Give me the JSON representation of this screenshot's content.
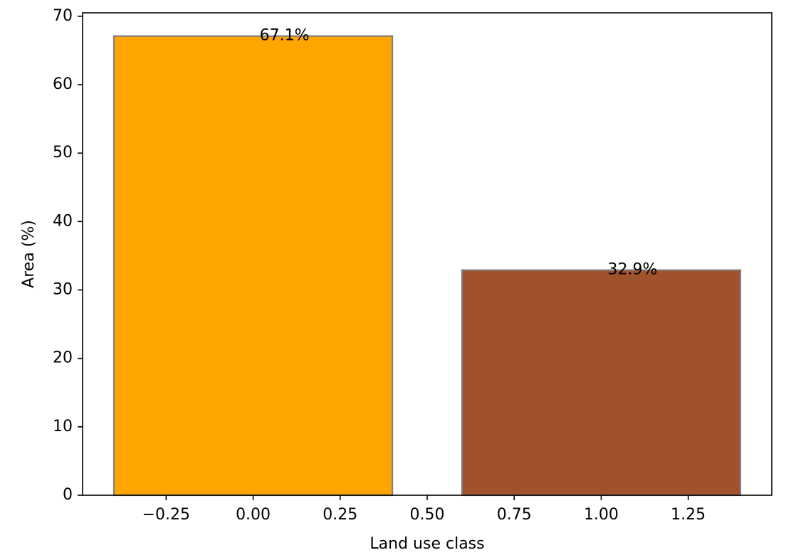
{
  "chart_data": {
    "type": "bar",
    "title": "",
    "xlabel": "Land use class",
    "ylabel": "Area (%)",
    "xlim": [
      -0.49,
      1.49
    ],
    "ylim": [
      0,
      70.5
    ],
    "x_ticks": [
      -0.25,
      0.0,
      0.25,
      0.5,
      0.75,
      1.0,
      1.25
    ],
    "x_tick_labels": [
      "−0.25",
      "0.00",
      "0.25",
      "0.50",
      "0.75",
      "1.00",
      "1.25"
    ],
    "y_ticks": [
      0,
      10,
      20,
      30,
      40,
      50,
      60,
      70
    ],
    "y_tick_labels": [
      "0",
      "10",
      "20",
      "30",
      "40",
      "50",
      "60",
      "70"
    ],
    "bar_width": 0.8,
    "grid": false,
    "bars": [
      {
        "x": 0,
        "value": 67.1,
        "label": "67.1%",
        "color": "#FFA500",
        "edge_color": "#808080"
      },
      {
        "x": 1,
        "value": 32.9,
        "label": "32.9%",
        "color": "#A0522D",
        "edge_color": "#808080"
      }
    ]
  }
}
